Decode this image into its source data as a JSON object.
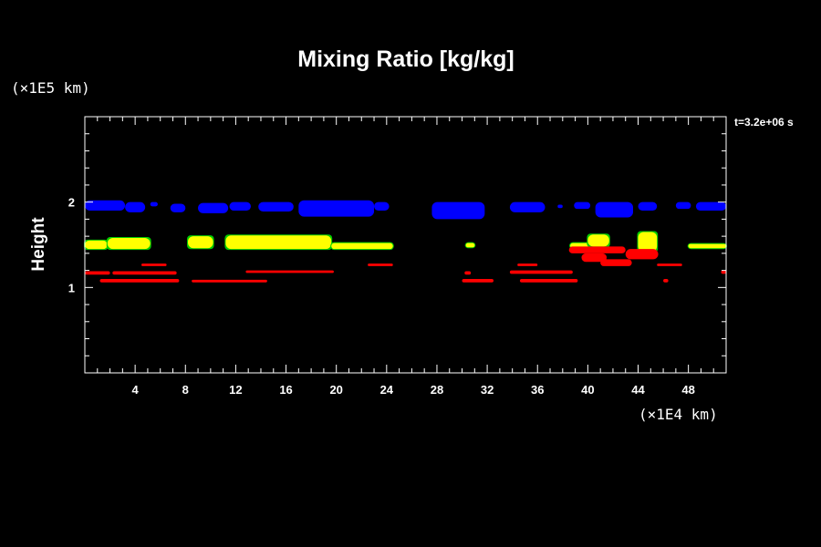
{
  "colors": {
    "background": "#000000",
    "foreground": "#ffffff",
    "cloud_top": "#0000ff",
    "mid_layer": "#ffff00",
    "mid_layer_edge": "#00cc00",
    "low_layer": "#ff0000"
  },
  "chart_data": {
    "type": "heatmap",
    "title": "Mixing Ratio [kg/kg]",
    "xlabel": "",
    "ylabel": "Height",
    "x_unit": "(×1E4 km)",
    "y_unit": "(×1E5 km)",
    "time_label": "t=3.2e+06 s",
    "xlim": [
      0,
      51
    ],
    "ylim": [
      0,
      3
    ],
    "xticks": [
      4,
      8,
      12,
      16,
      20,
      24,
      28,
      32,
      36,
      40,
      44,
      48
    ],
    "yticks": [
      1,
      2
    ],
    "x_minor_step": 1,
    "y_minor_step": 0.2,
    "grid": false,
    "regions": [
      {
        "layer": "blue",
        "x": [
          0,
          3.2
        ],
        "y": [
          1.9,
          2.02
        ]
      },
      {
        "layer": "blue",
        "x": [
          3.2,
          4.8
        ],
        "y": [
          1.88,
          2.0
        ]
      },
      {
        "layer": "blue",
        "x": [
          5.2,
          5.8
        ],
        "y": [
          1.95,
          2.0
        ]
      },
      {
        "layer": "blue",
        "x": [
          6.8,
          8.0
        ],
        "y": [
          1.88,
          1.98
        ]
      },
      {
        "layer": "blue",
        "x": [
          9.0,
          11.4
        ],
        "y": [
          1.87,
          1.99
        ]
      },
      {
        "layer": "blue",
        "x": [
          11.5,
          13.2
        ],
        "y": [
          1.9,
          2.0
        ]
      },
      {
        "layer": "blue",
        "x": [
          13.8,
          16.6
        ],
        "y": [
          1.89,
          2.0
        ]
      },
      {
        "layer": "blue",
        "x": [
          17.0,
          23.0
        ],
        "y": [
          1.83,
          2.02
        ]
      },
      {
        "layer": "blue",
        "x": [
          23.0,
          24.2
        ],
        "y": [
          1.9,
          2.0
        ]
      },
      {
        "layer": "blue",
        "x": [
          27.6,
          31.8
        ],
        "y": [
          1.8,
          2.0
        ]
      },
      {
        "layer": "blue",
        "x": [
          33.8,
          36.6
        ],
        "y": [
          1.88,
          2.0
        ]
      },
      {
        "layer": "blue",
        "x": [
          37.6,
          38.0
        ],
        "y": [
          1.93,
          1.97
        ]
      },
      {
        "layer": "blue",
        "x": [
          38.9,
          40.2
        ],
        "y": [
          1.92,
          2.0
        ]
      },
      {
        "layer": "blue",
        "x": [
          40.6,
          43.6
        ],
        "y": [
          1.82,
          2.0
        ]
      },
      {
        "layer": "blue",
        "x": [
          44.0,
          45.5
        ],
        "y": [
          1.9,
          2.0
        ]
      },
      {
        "layer": "blue",
        "x": [
          47.0,
          48.2
        ],
        "y": [
          1.92,
          2.0
        ]
      },
      {
        "layer": "blue",
        "x": [
          48.6,
          51.0
        ],
        "y": [
          1.9,
          2.0
        ]
      },
      {
        "layer": "yellow",
        "x": [
          0,
          1.8
        ],
        "y": [
          1.45,
          1.55
        ]
      },
      {
        "layer": "yellow",
        "x": [
          1.8,
          5.2
        ],
        "y": [
          1.45,
          1.58
        ]
      },
      {
        "layer": "yellow",
        "x": [
          8.2,
          10.2
        ],
        "y": [
          1.46,
          1.6
        ]
      },
      {
        "layer": "yellow",
        "x": [
          11.2,
          19.6
        ],
        "y": [
          1.45,
          1.61
        ]
      },
      {
        "layer": "yellow",
        "x": [
          19.6,
          24.5
        ],
        "y": [
          1.45,
          1.52
        ]
      },
      {
        "layer": "yellow",
        "x": [
          30.3,
          31.0
        ],
        "y": [
          1.47,
          1.52
        ]
      },
      {
        "layer": "yellow",
        "x": [
          38.6,
          40.4
        ],
        "y": [
          1.46,
          1.52
        ]
      },
      {
        "layer": "yellow",
        "x": [
          40.0,
          41.7
        ],
        "y": [
          1.48,
          1.62
        ]
      },
      {
        "layer": "yellow",
        "x": [
          44.0,
          45.5
        ],
        "y": [
          1.42,
          1.65
        ]
      },
      {
        "layer": "yellow",
        "x": [
          48.0,
          51.0
        ],
        "y": [
          1.46,
          1.51
        ]
      },
      {
        "layer": "red",
        "x": [
          4.5,
          6.5
        ],
        "y": [
          1.25,
          1.28
        ]
      },
      {
        "layer": "red",
        "x": [
          0,
          2.0
        ],
        "y": [
          1.15,
          1.19
        ]
      },
      {
        "layer": "red",
        "x": [
          2.2,
          7.3
        ],
        "y": [
          1.15,
          1.19
        ]
      },
      {
        "layer": "red",
        "x": [
          1.2,
          7.5
        ],
        "y": [
          1.06,
          1.1
        ]
      },
      {
        "layer": "red",
        "x": [
          8.5,
          14.5
        ],
        "y": [
          1.06,
          1.09
        ]
      },
      {
        "layer": "red",
        "x": [
          12.8,
          19.8
        ],
        "y": [
          1.17,
          1.2
        ]
      },
      {
        "layer": "red",
        "x": [
          22.5,
          24.5
        ],
        "y": [
          1.25,
          1.28
        ]
      },
      {
        "layer": "red",
        "x": [
          30.0,
          32.5
        ],
        "y": [
          1.06,
          1.1
        ]
      },
      {
        "layer": "red",
        "x": [
          30.2,
          30.7
        ],
        "y": [
          1.15,
          1.19
        ]
      },
      {
        "layer": "red",
        "x": [
          34.4,
          36.0
        ],
        "y": [
          1.25,
          1.28
        ]
      },
      {
        "layer": "red",
        "x": [
          33.8,
          38.8
        ],
        "y": [
          1.16,
          1.2
        ]
      },
      {
        "layer": "red",
        "x": [
          34.6,
          39.2
        ],
        "y": [
          1.06,
          1.1
        ]
      },
      {
        "layer": "red",
        "x": [
          38.5,
          43.0
        ],
        "y": [
          1.4,
          1.48
        ]
      },
      {
        "layer": "red",
        "x": [
          39.5,
          41.5
        ],
        "y": [
          1.3,
          1.4
        ]
      },
      {
        "layer": "red",
        "x": [
          41.0,
          43.5
        ],
        "y": [
          1.25,
          1.33
        ]
      },
      {
        "layer": "red",
        "x": [
          43.0,
          45.6
        ],
        "y": [
          1.33,
          1.45
        ]
      },
      {
        "layer": "red",
        "x": [
          45.5,
          47.5
        ],
        "y": [
          1.25,
          1.28
        ]
      },
      {
        "layer": "red",
        "x": [
          46.0,
          46.4
        ],
        "y": [
          1.06,
          1.1
        ]
      },
      {
        "layer": "red",
        "x": [
          50.6,
          51.0
        ],
        "y": [
          1.16,
          1.2
        ]
      }
    ]
  }
}
